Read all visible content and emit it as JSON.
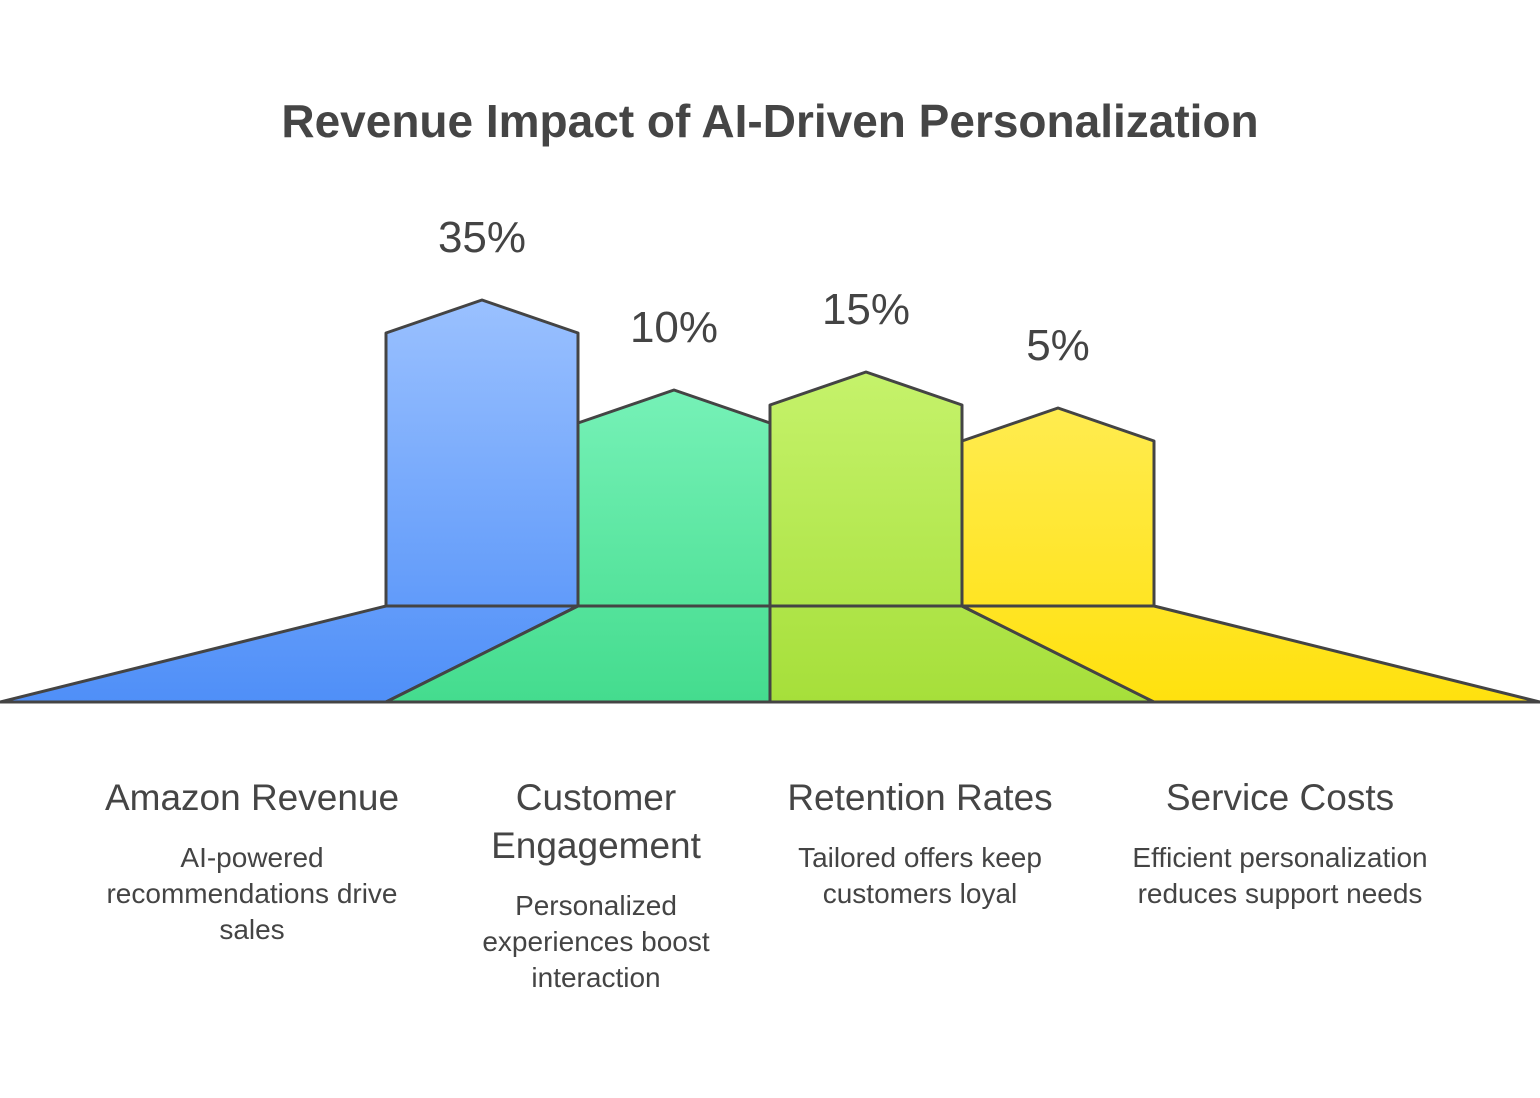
{
  "chart_data": {
    "type": "bar",
    "title": "Revenue Impact of AI-Driven Personalization",
    "categories": [
      "Amazon Revenue",
      "Customer Engagement",
      "Retention Rates",
      "Service Costs"
    ],
    "values": [
      35,
      10,
      15,
      5
    ],
    "value_labels": [
      "35%",
      "10%",
      "15%",
      "5%"
    ],
    "descriptions": [
      "AI-powered recommendations drive sales",
      "Personalized experiences boost interaction",
      "Tailored offers keep customers loyal",
      "Efficient personalization reduces support needs"
    ],
    "colors": [
      {
        "top": "#9cc2ff",
        "bottom": "#4f8ff8"
      },
      {
        "top": "#86f8c4",
        "bottom": "#44dc8e"
      },
      {
        "top": "#cdf777",
        "bottom": "#a6df3a"
      },
      {
        "top": "#fff06a",
        "bottom": "#ffe10e"
      }
    ],
    "stroke": "#444444"
  }
}
